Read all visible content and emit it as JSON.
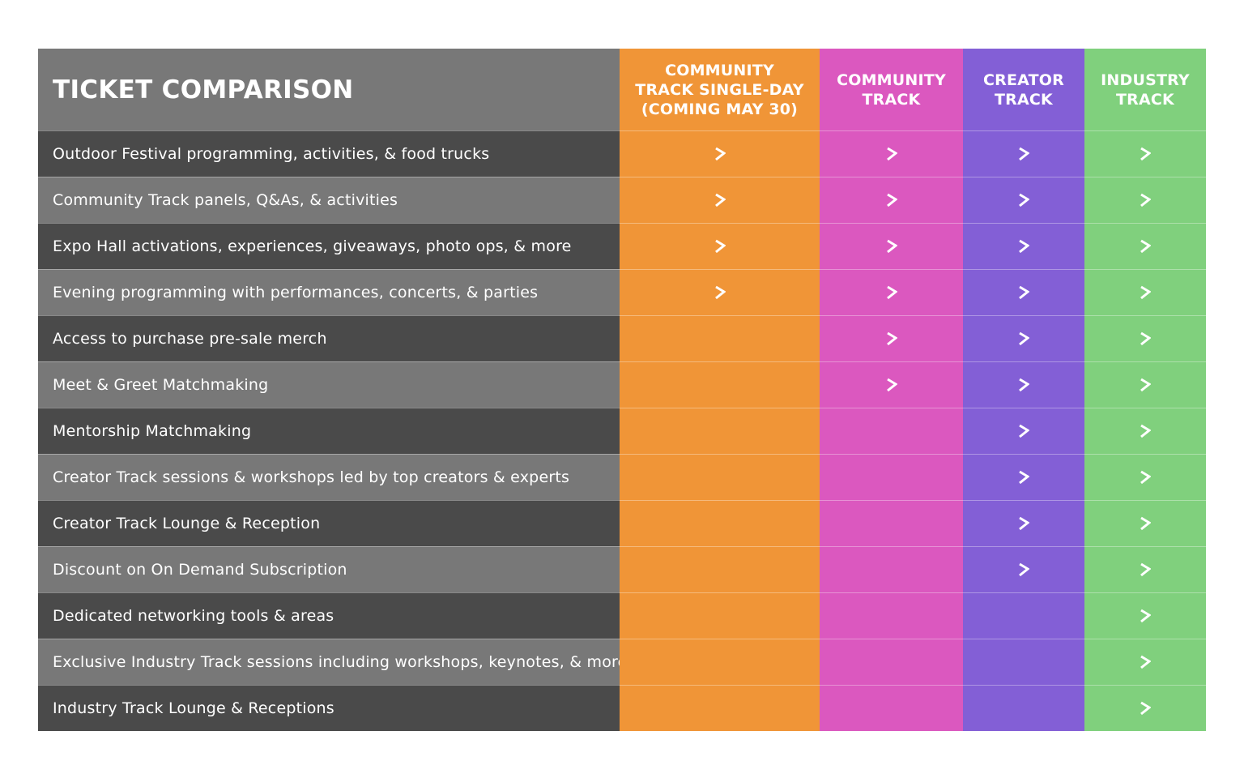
{
  "header": {
    "title": "TICKET COMPARISON"
  },
  "columns": [
    {
      "label": "COMMUNITY\nTRACK SINGLE-DAY\n(COMING MAY 30)",
      "color": "#f09537"
    },
    {
      "label": "COMMUNITY\nTRACK",
      "color": "#db58bf"
    },
    {
      "label": "CREATOR\nTRACK",
      "color": "#835fd6"
    },
    {
      "label": "INDUSTRY\nTRACK",
      "color": "#80d07d"
    }
  ],
  "label_colors": {
    "dark": "#4a4a4a",
    "light": "#787878"
  },
  "check_icon": "chevron-right-icon",
  "rows": [
    {
      "label": "Outdoor Festival programming, activities, & food trucks",
      "included": [
        true,
        true,
        true,
        true
      ]
    },
    {
      "label": "Community Track panels, Q&As, & activities",
      "included": [
        true,
        true,
        true,
        true
      ]
    },
    {
      "label": "Expo Hall activations, experiences, giveaways, photo ops, & more",
      "included": [
        true,
        true,
        true,
        true
      ]
    },
    {
      "label": "Evening programming with performances, concerts, & parties",
      "included": [
        true,
        true,
        true,
        true
      ]
    },
    {
      "label": "Access to purchase pre-sale merch",
      "included": [
        false,
        true,
        true,
        true
      ]
    },
    {
      "label": "Meet & Greet Matchmaking",
      "included": [
        false,
        true,
        true,
        true
      ]
    },
    {
      "label": "Mentorship Matchmaking",
      "included": [
        false,
        false,
        true,
        true
      ]
    },
    {
      "label": "Creator Track sessions & workshops led by top creators & experts",
      "included": [
        false,
        false,
        true,
        true
      ]
    },
    {
      "label": "Creator Track Lounge & Reception",
      "included": [
        false,
        false,
        true,
        true
      ]
    },
    {
      "label": "Discount on On Demand Subscription",
      "included": [
        false,
        false,
        true,
        true
      ]
    },
    {
      "label": "Dedicated networking tools & areas",
      "included": [
        false,
        false,
        false,
        true
      ]
    },
    {
      "label": "Exclusive Industry Track sessions including workshops, keynotes, & more",
      "included": [
        false,
        false,
        false,
        true
      ]
    },
    {
      "label": "Industry Track Lounge & Receptions",
      "included": [
        false,
        false,
        false,
        true
      ]
    }
  ]
}
